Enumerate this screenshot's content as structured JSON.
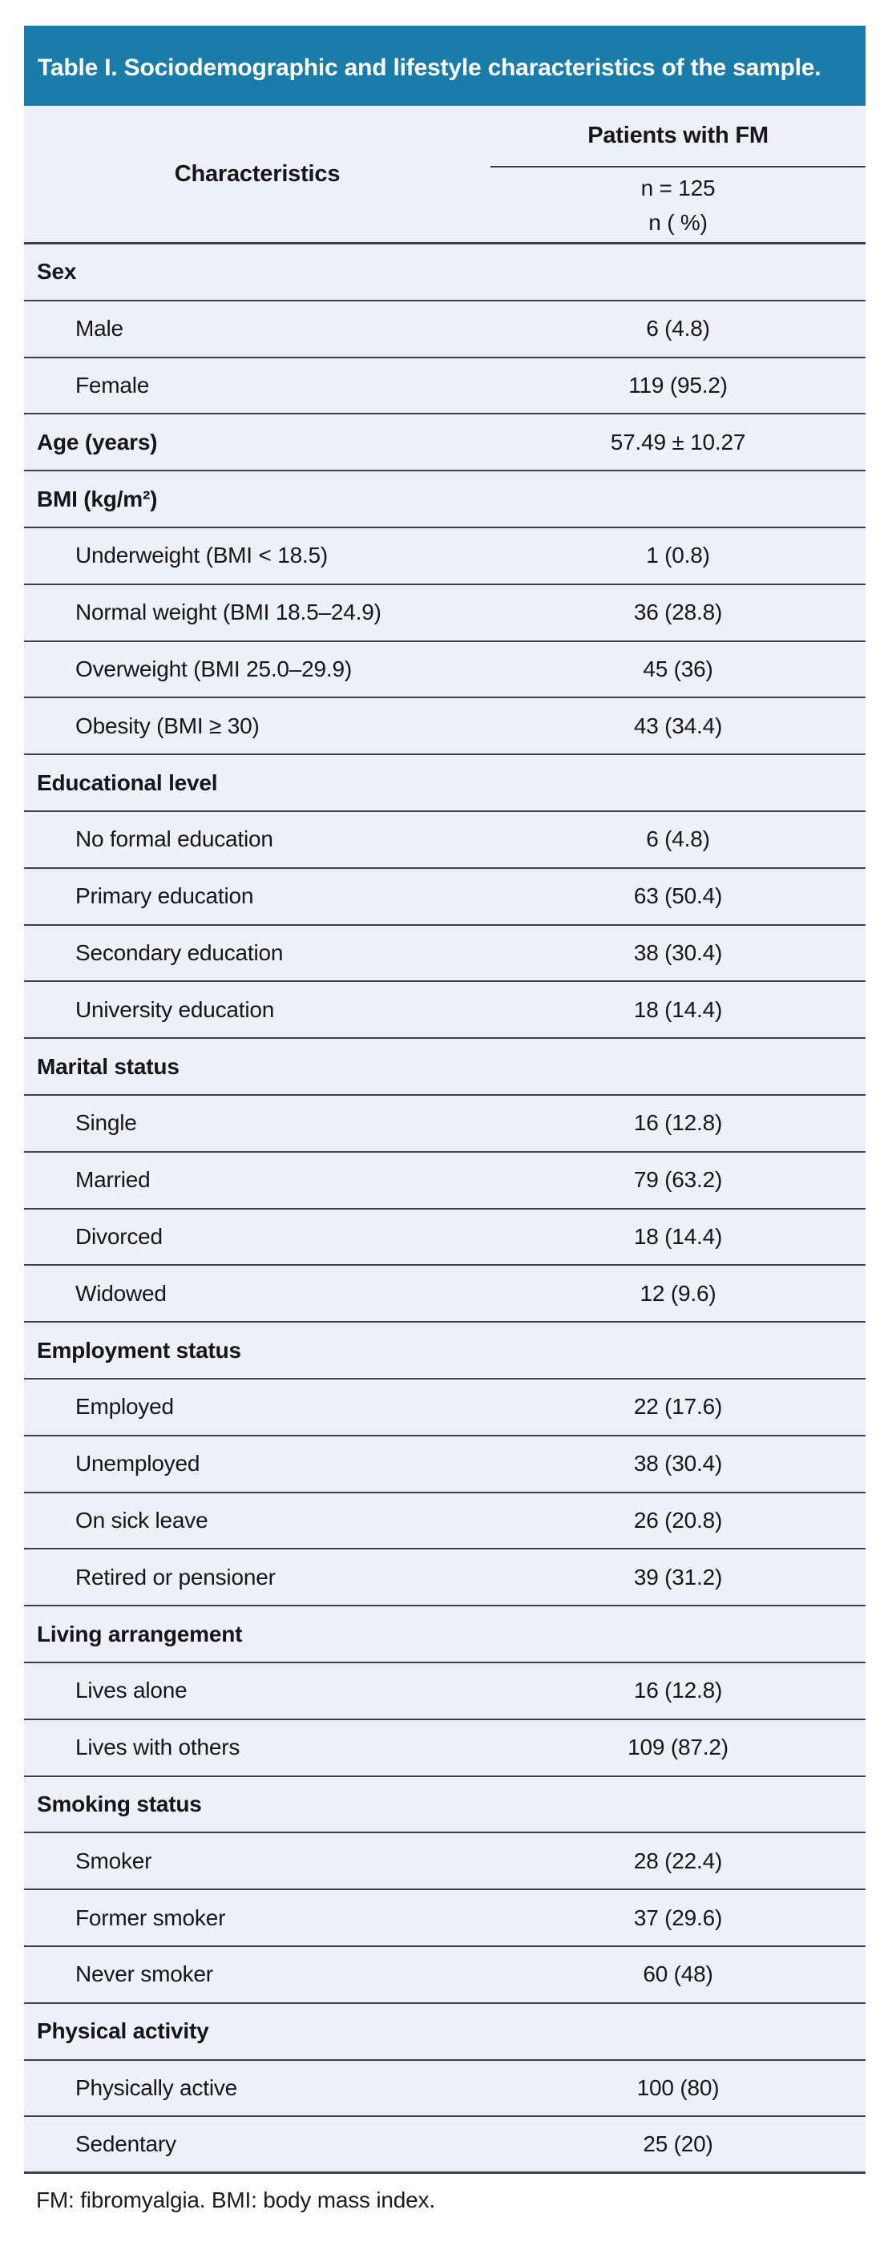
{
  "title_bar": {
    "title": "Table I. Sociodemographic and lifestyle characteristics of the sample."
  },
  "table": {
    "columns": {
      "characteristics": "Characteristics",
      "group": "Patients with FM",
      "group_sub_n": "n = 125",
      "group_sub_pct": "n ( %)"
    },
    "rows": [
      {
        "type": "section",
        "label": "Sex",
        "value": ""
      },
      {
        "type": "item",
        "label": "Male",
        "value": "6 (4.8)"
      },
      {
        "type": "item",
        "label": "Female",
        "value": "119 (95.2)"
      },
      {
        "type": "stat",
        "label": "Age (years)",
        "value": "57.49 ± 10.27"
      },
      {
        "type": "section",
        "label": "BMI (kg/m²)",
        "value": ""
      },
      {
        "type": "item",
        "label": "Underweight (BMI < 18.5)",
        "value": "1 (0.8)"
      },
      {
        "type": "item",
        "label": "Normal weight (BMI 18.5–24.9)",
        "value": "36 (28.8)"
      },
      {
        "type": "item",
        "label": "Overweight (BMI 25.0–29.9)",
        "value": "45 (36)"
      },
      {
        "type": "item",
        "label": "Obesity (BMI ≥ 30)",
        "value": "43 (34.4)"
      },
      {
        "type": "section",
        "label": "Educational level",
        "value": ""
      },
      {
        "type": "item",
        "label": "No formal education",
        "value": "6 (4.8)"
      },
      {
        "type": "item",
        "label": "Primary education",
        "value": "63 (50.4)"
      },
      {
        "type": "item",
        "label": "Secondary education",
        "value": "38 (30.4)"
      },
      {
        "type": "item",
        "label": "University education",
        "value": "18 (14.4)"
      },
      {
        "type": "section",
        "label": "Marital status",
        "value": ""
      },
      {
        "type": "item",
        "label": "Single",
        "value": "16 (12.8)"
      },
      {
        "type": "item",
        "label": "Married",
        "value": "79 (63.2)"
      },
      {
        "type": "item",
        "label": "Divorced",
        "value": "18 (14.4)"
      },
      {
        "type": "item",
        "label": "Widowed",
        "value": "12 (9.6)"
      },
      {
        "type": "section",
        "label": "Employment status",
        "value": ""
      },
      {
        "type": "item",
        "label": "Employed",
        "value": "22 (17.6)"
      },
      {
        "type": "item",
        "label": "Unemployed",
        "value": "38 (30.4)"
      },
      {
        "type": "item",
        "label": "On sick leave",
        "value": "26 (20.8)"
      },
      {
        "type": "item",
        "label": "Retired or pensioner",
        "value": "39 (31.2)"
      },
      {
        "type": "section",
        "label": "Living arrangement",
        "value": ""
      },
      {
        "type": "item",
        "label": "Lives alone",
        "value": "16 (12.8)"
      },
      {
        "type": "item",
        "label": "Lives with others",
        "value": "109 (87.2)"
      },
      {
        "type": "section",
        "label": "Smoking status",
        "value": ""
      },
      {
        "type": "item",
        "label": "Smoker",
        "value": "28 (22.4)"
      },
      {
        "type": "item",
        "label": "Former smoker",
        "value": "37 (29.6)"
      },
      {
        "type": "item",
        "label": "Never smoker",
        "value": "60 (48)"
      },
      {
        "type": "section",
        "label": "Physical activity",
        "value": ""
      },
      {
        "type": "item",
        "label": "Physically active",
        "value": "100 (80)"
      },
      {
        "type": "item",
        "label": "Sedentary",
        "value": "25 (20)"
      }
    ],
    "footnote": "FM: fibromyalgia. BMI: body mass index."
  },
  "chart_data": {
    "type": "table",
    "title": "Table I. Sociodemographic and lifestyle characteristics of the sample.",
    "columns": [
      "Characteristics",
      "Patients with FM (n = 125), n ( %)"
    ],
    "n_total": 125
  },
  "colors": {
    "accent_teal": "#1A7CA8",
    "row_background": "#ECF0F7",
    "line": "#3B4046",
    "title_text": "#FFFFFF",
    "body_text": "#161616"
  }
}
